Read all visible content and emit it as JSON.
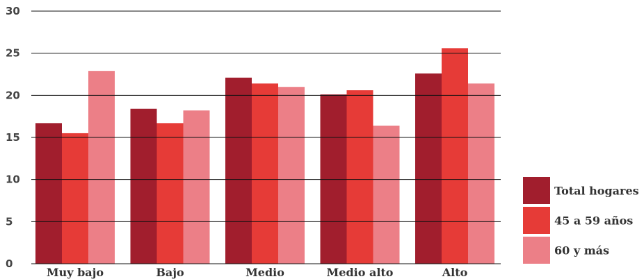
{
  "chart_data": {
    "type": "bar",
    "title": "",
    "xlabel": "",
    "ylabel": "",
    "categories": [
      "Muy bajo",
      "Bajo",
      "Medio",
      "Medio alto",
      "Alto"
    ],
    "series": [
      {
        "name": "Total hogares",
        "values": [
          16.7,
          18.4,
          22.1,
          20.1,
          22.6
        ],
        "color": "#A11E2D"
      },
      {
        "name": "45 a 59 años",
        "values": [
          15.5,
          16.7,
          21.4,
          20.6,
          25.6
        ],
        "color": "#E63B37"
      },
      {
        "name": "60 y más",
        "values": [
          22.9,
          18.2,
          21.0,
          16.4,
          21.4
        ],
        "color": "#EC7F87"
      }
    ],
    "ylim": [
      0,
      30
    ],
    "yticks": [
      0,
      5,
      10,
      15,
      20,
      25,
      30
    ],
    "grid": true,
    "legend_position": "bottom-right",
    "gridline_color": "#111111",
    "tick_color": "#444444",
    "label_color": "#333333"
  }
}
